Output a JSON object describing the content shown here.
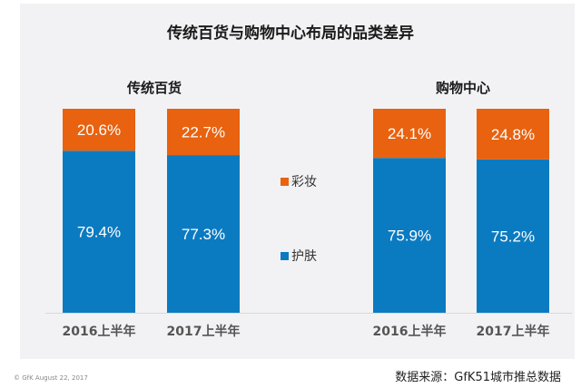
{
  "chart_data": {
    "type": "bar",
    "stacked": true,
    "title": "传统百货与购物中心布局的品类差异",
    "groups": [
      {
        "name": "传统百货",
        "categories": [
          "2016上半年",
          "2017上半年"
        ]
      },
      {
        "name": "购物中心",
        "categories": [
          "2016上半年",
          "2017上半年"
        ]
      }
    ],
    "series": [
      {
        "name": "护肤",
        "color": "#0b7bc1",
        "values": [
          79.4,
          77.3,
          75.9,
          75.2
        ],
        "labels": [
          "79.4%",
          "77.3%",
          "75.9%",
          "75.2%"
        ]
      },
      {
        "name": "彩妆",
        "color": "#e8620f",
        "values": [
          20.6,
          22.7,
          24.1,
          24.8
        ],
        "labels": [
          "20.6%",
          "22.7%",
          "24.1%",
          "24.8%"
        ]
      }
    ],
    "ylim": [
      0,
      100
    ],
    "legend": [
      "彩妆",
      "护肤"
    ],
    "legend_position": "center"
  },
  "footer": {
    "copyright": "© GfK August 22, 2017",
    "source": "数据来源：GfK51城市推总数据"
  }
}
